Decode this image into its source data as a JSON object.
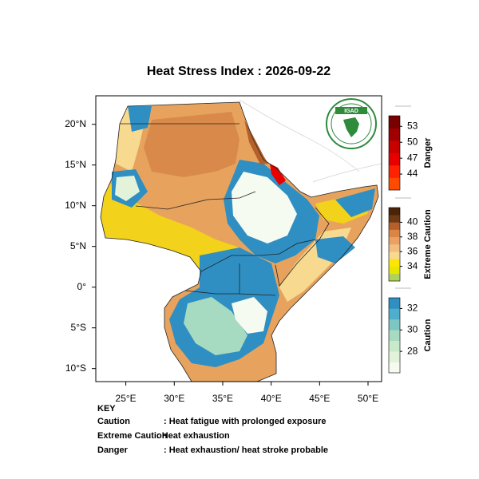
{
  "map": {
    "title": "Heat Stress Index : 2026-09-22",
    "xlim": [
      21.9,
      51.4
    ],
    "ylim": [
      -11.6,
      23.5
    ],
    "xticks": [
      {
        "value": 25,
        "label": "25°E"
      },
      {
        "value": 30,
        "label": "30°E"
      },
      {
        "value": 35,
        "label": "35°E"
      },
      {
        "value": 40,
        "label": "40°E"
      },
      {
        "value": 45,
        "label": "45°E"
      },
      {
        "value": 50,
        "label": "50°E"
      }
    ],
    "yticks": [
      {
        "value": 20,
        "label": "20°N"
      },
      {
        "value": 15,
        "label": "15°N"
      },
      {
        "value": 10,
        "label": "10°N"
      },
      {
        "value": 5,
        "label": "5°N"
      },
      {
        "value": 0,
        "label": "0°"
      },
      {
        "value": -5,
        "label": "5°S"
      },
      {
        "value": -10,
        "label": "10°S"
      }
    ],
    "logo": "IGAD",
    "colorbars": [
      {
        "name": "Danger",
        "range": [
          41,
          55
        ],
        "ticks": [
          44,
          47,
          50,
          53
        ],
        "colors": [
          "#ff4a00",
          "#ff2200",
          "#e80000",
          "#c80000",
          "#a00000",
          "#780000"
        ]
      },
      {
        "name": "Extreme Caution",
        "range": [
          32,
          42
        ],
        "ticks": [
          34,
          36,
          38,
          40
        ],
        "colors": [
          "#b0d25a",
          "#e6e600",
          "#ffe600",
          "#f7d990",
          "#f2bd7e",
          "#eba163",
          "#db8545",
          "#b5602a",
          "#6e3a16",
          "#4a2408"
        ]
      },
      {
        "name": "Caution",
        "range": [
          26,
          33
        ],
        "ticks": [
          28,
          30,
          32
        ],
        "colors": [
          "#f6fbf1",
          "#e2f3da",
          "#c9e9cb",
          "#a7dbc1",
          "#7cc6c3",
          "#4eaecb",
          "#2f8fc2"
        ]
      }
    ],
    "key": {
      "heading": "KEY",
      "rows": [
        {
          "term": "Caution",
          "description": ": Heat fatigue with prolonged exposure"
        },
        {
          "term": "Extreme Caution",
          "description": ": Heat exhaustion"
        },
        {
          "term": "Danger",
          "description": ": Heat exhaustion/ heat stroke probable"
        }
      ]
    }
  }
}
